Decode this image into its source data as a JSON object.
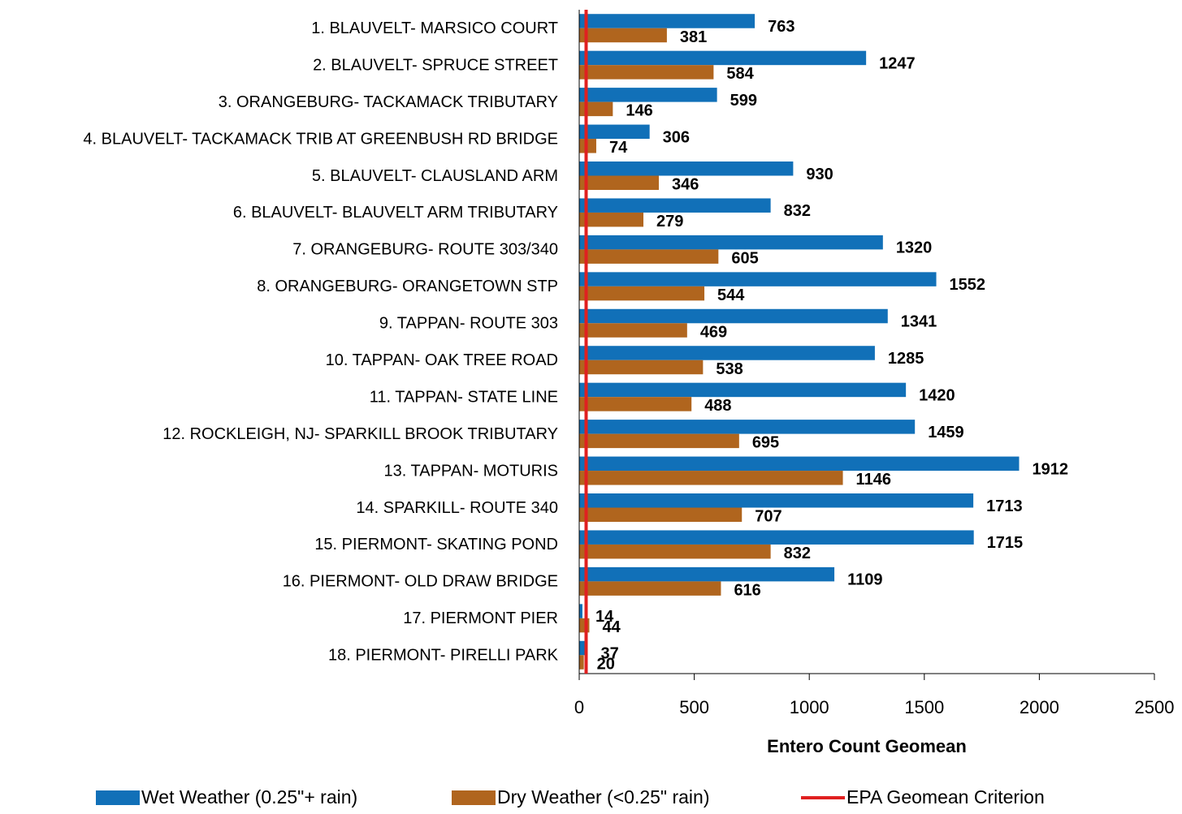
{
  "chart_data": {
    "type": "hbar",
    "xlabel": "Entero Count Geomean",
    "categories": [
      "1. BLAUVELT- MARSICO COURT",
      "2. BLAUVELT- SPRUCE STREET",
      "3. ORANGEBURG- TACKAMACK TRIBUTARY",
      "4. BLAUVELT- TACKAMACK TRIB AT GREENBUSH RD BRIDGE",
      "5. BLAUVELT- CLAUSLAND ARM",
      "6. BLAUVELT- BLAUVELT ARM TRIBUTARY",
      "7. ORANGEBURG- ROUTE 303/340",
      "8. ORANGEBURG- ORANGETOWN STP",
      "9. TAPPAN- ROUTE 303",
      "10. TAPPAN- OAK TREE ROAD",
      "11. TAPPAN- STATE LINE",
      "12. ROCKLEIGH, NJ- SPARKILL BROOK TRIBUTARY",
      "13. TAPPAN- MOTURIS",
      "14. SPARKILL- ROUTE 340",
      "15. PIERMONT- SKATING POND",
      "16. PIERMONT- OLD DRAW BRIDGE",
      "17. PIERMONT PIER",
      "18. PIERMONT- PIRELLI PARK"
    ],
    "series": [
      {
        "name": "Wet Weather (0.25\"+ rain)",
        "color": "#1170b8",
        "values": [
          763,
          1247,
          599,
          306,
          930,
          832,
          1320,
          1552,
          1341,
          1285,
          1420,
          1459,
          1912,
          1713,
          1715,
          1109,
          14,
          37
        ]
      },
      {
        "name": "Dry Weather (<0.25\" rain)",
        "color": "#b0651e",
        "values": [
          381,
          584,
          146,
          74,
          346,
          279,
          605,
          544,
          469,
          538,
          488,
          695,
          1146,
          707,
          832,
          616,
          44,
          20
        ]
      }
    ],
    "reference_line": {
      "name": "EPA Geomean Criterion",
      "value": 30,
      "color": "#e02020"
    },
    "xlim": [
      0,
      2500
    ],
    "xticks": [
      0,
      500,
      1000,
      1500,
      2000,
      2500
    ],
    "grid": false,
    "legend": "bottom"
  }
}
